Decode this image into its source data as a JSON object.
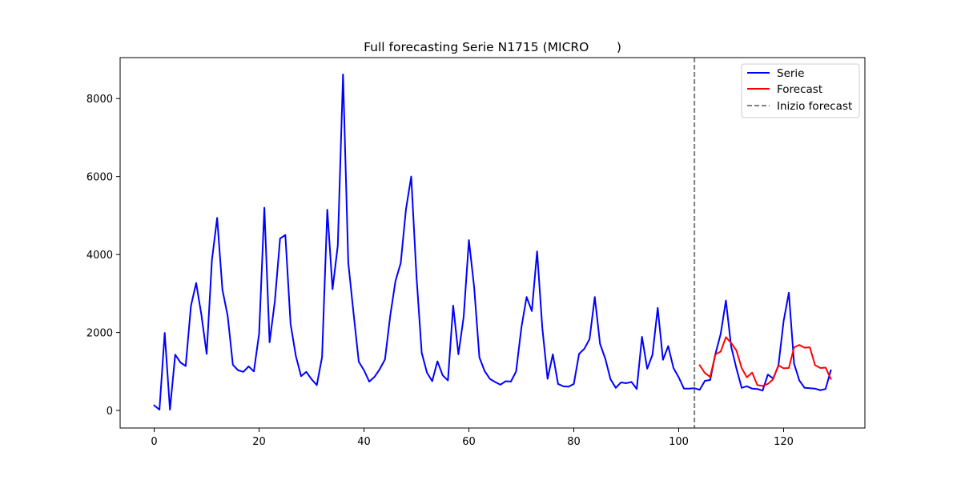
{
  "chart_data": {
    "type": "line",
    "title": "Full forecasting Serie N1715 (MICRO       )",
    "xlabel": "",
    "ylabel": "",
    "xlim": [
      -6.5,
      135.5
    ],
    "ylim": [
      -450,
      9050
    ],
    "xticks": [
      0,
      20,
      40,
      60,
      80,
      100,
      120
    ],
    "yticks": [
      0,
      2000,
      4000,
      6000,
      8000
    ],
    "grid": false,
    "legend_position": "top-right",
    "forecast_start": 103,
    "series": [
      {
        "name": "Serie",
        "color": "#0000ff",
        "x_start": 0,
        "values": [
          130,
          20,
          1990,
          20,
          1430,
          1230,
          1140,
          2680,
          3270,
          2450,
          1450,
          3850,
          4940,
          3100,
          2430,
          1170,
          1030,
          990,
          1130,
          1000,
          1970,
          5200,
          1750,
          2800,
          4410,
          4500,
          2220,
          1400,
          880,
          990,
          800,
          650,
          1370,
          5150,
          3110,
          4230,
          8620,
          3790,
          2500,
          1250,
          1030,
          740,
          860,
          1060,
          1310,
          2430,
          3320,
          3780,
          5160,
          6000,
          3450,
          1480,
          970,
          750,
          1260,
          900,
          770,
          2690,
          1440,
          2400,
          4370,
          3160,
          1360,
          1010,
          810,
          730,
          660,
          750,
          740,
          1000,
          2120,
          2910,
          2550,
          4080,
          2110,
          810,
          1440,
          680,
          620,
          610,
          680,
          1450,
          1580,
          1830,
          2910,
          1710,
          1330,
          800,
          580,
          720,
          700,
          730,
          550,
          1890,
          1070,
          1430,
          2630,
          1300,
          1650,
          1090,
          850,
          560,
          560,
          570,
          530,
          760,
          780,
          1450,
          1960,
          2820,
          1640,
          1080,
          580,
          620,
          560,
          550,
          510,
          920,
          820,
          1140,
          2290,
          3020,
          1200,
          770,
          580,
          570,
          560,
          520,
          550,
          1030
        ]
      },
      {
        "name": "Forecast",
        "color": "#ff0000",
        "x_start": 104,
        "values": [
          1160,
          960,
          860,
          1440,
          1510,
          1880,
          1730,
          1540,
          1090,
          850,
          970,
          650,
          630,
          680,
          800,
          1160,
          1080,
          1090,
          1620,
          1680,
          1610,
          1620,
          1160,
          1090,
          1100,
          810
        ]
      }
    ],
    "vline": {
      "name": "Inizio forecast",
      "color": "#808080",
      "x": 103
    }
  }
}
